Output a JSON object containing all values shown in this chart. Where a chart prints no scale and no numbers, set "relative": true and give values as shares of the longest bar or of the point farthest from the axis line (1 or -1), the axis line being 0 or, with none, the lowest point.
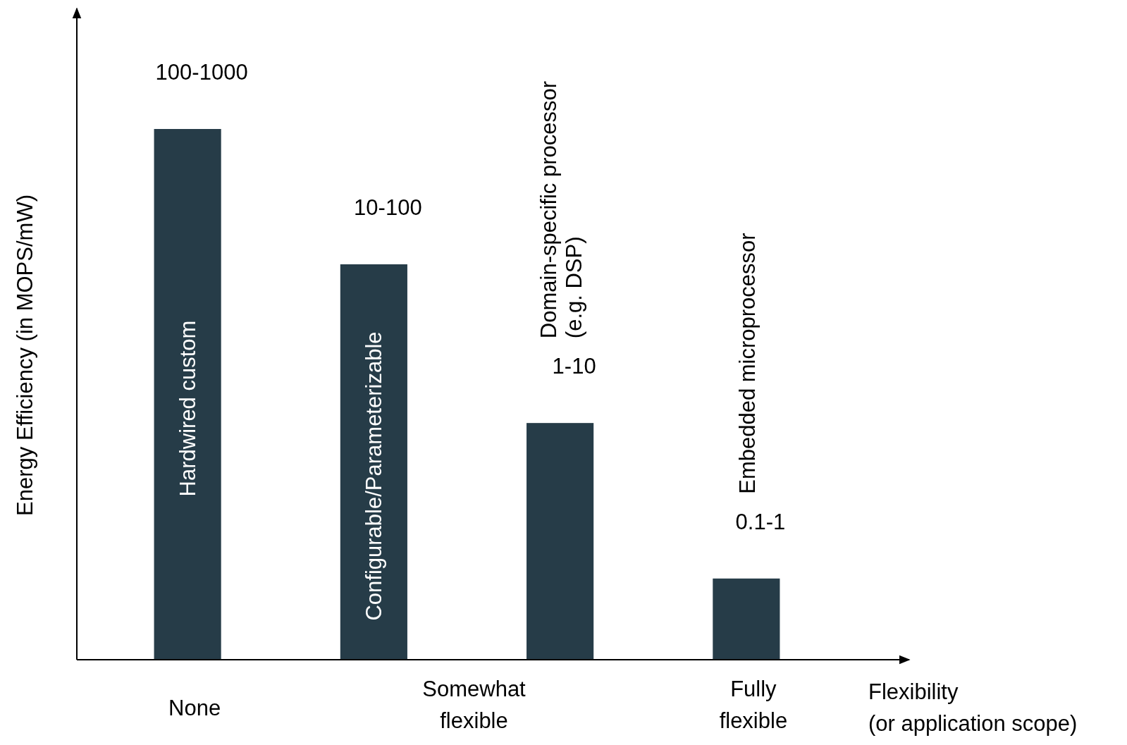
{
  "chart_data": {
    "type": "bar",
    "relative": true,
    "xlabel": "Flexibility\n(or application scope)",
    "ylabel": "Energy Efficiency (in MOPS/mW)",
    "categories": [
      "Hardwired custom",
      "Configurable/Parameterizable",
      "Domain-specific processor\n(e.g. DSP)",
      "Embedded microprocessor"
    ],
    "values": [
      1,
      0.745,
      0.446,
      0.153
    ],
    "color": "#263c48",
    "annotations": [
      {
        "text": "100-1000",
        "x": "Hardwired custom",
        "y": 1
      },
      {
        "text": "10-100",
        "x": "Configurable/Parameterizable",
        "y": 0.745
      },
      {
        "text": "1-10",
        "x": "Domain-specific processor\n(e.g. DSP)",
        "y": 0.446
      },
      {
        "text": "0.1-1",
        "x": "Embedded microprocessor",
        "y": 0.153
      },
      "None",
      "Somewhat\nflexible",
      "Fully\nflexible"
    ]
  }
}
